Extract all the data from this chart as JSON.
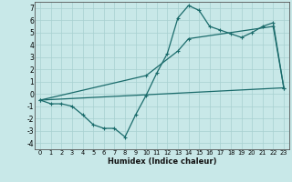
{
  "xlabel": "Humidex (Indice chaleur)",
  "bg_color": "#c8e8e8",
  "line_color": "#1a6b6b",
  "grid_color": "#a8d0d0",
  "xlim": [
    -0.5,
    23.5
  ],
  "ylim": [
    -4.5,
    7.5
  ],
  "yticks": [
    -4,
    -3,
    -2,
    -1,
    0,
    1,
    2,
    3,
    4,
    5,
    6,
    7
  ],
  "xticks": [
    0,
    1,
    2,
    3,
    4,
    5,
    6,
    7,
    8,
    9,
    10,
    11,
    12,
    13,
    14,
    15,
    16,
    17,
    18,
    19,
    20,
    21,
    22,
    23
  ],
  "line1_x": [
    0,
    1,
    2,
    3,
    4,
    5,
    6,
    7,
    8,
    9,
    10,
    11,
    12,
    13,
    14,
    15,
    16,
    17,
    18,
    19,
    20,
    21,
    22,
    23
  ],
  "line1_y": [
    -0.5,
    -0.8,
    -0.8,
    -1.0,
    -1.7,
    -2.5,
    -2.8,
    -2.8,
    -3.5,
    -1.7,
    -0.1,
    1.7,
    3.3,
    6.2,
    7.2,
    6.8,
    5.5,
    5.2,
    4.9,
    4.6,
    5.0,
    5.5,
    5.8,
    0.5
  ],
  "line2_x": [
    0,
    23
  ],
  "line2_y": [
    -0.5,
    0.5
  ],
  "line3_x": [
    0,
    10,
    13,
    14,
    22,
    23
  ],
  "line3_y": [
    -0.5,
    1.5,
    3.5,
    4.5,
    5.5,
    0.5
  ]
}
